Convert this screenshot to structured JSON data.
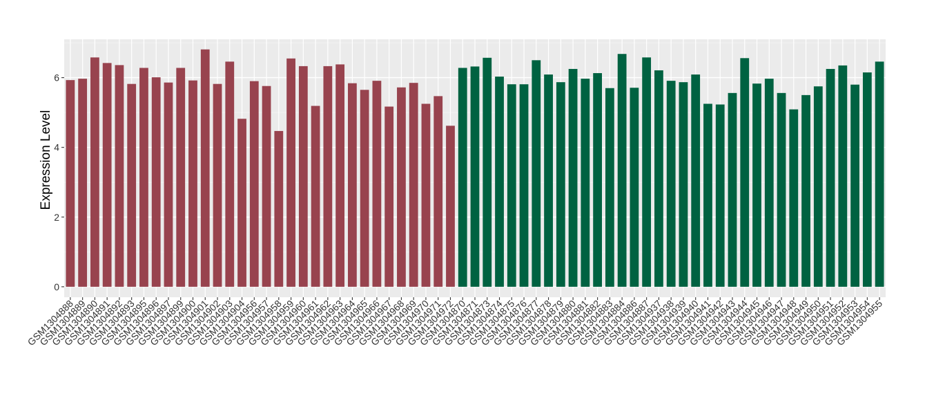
{
  "chart_data": {
    "type": "bar",
    "title": "",
    "xlabel": "",
    "ylabel": "Expression Level",
    "ylim": [
      -0.3,
      7.1
    ],
    "yticks": [
      0,
      2,
      4,
      6
    ],
    "grid": true,
    "categories": [
      "GSM1304888",
      "GSM1304889",
      "GSM1304890",
      "GSM1304891",
      "GSM1304892",
      "GSM1304893",
      "GSM1304895",
      "GSM1304896",
      "GSM1304897",
      "GSM1304899",
      "GSM1304900",
      "GSM1304901",
      "GSM1304902",
      "GSM1304903",
      "GSM1304904",
      "GSM1304956",
      "GSM1304957",
      "GSM1304958",
      "GSM1304959",
      "GSM1304960",
      "GSM1304961",
      "GSM1304962",
      "GSM1304963",
      "GSM1304964",
      "GSM1304965",
      "GSM1304966",
      "GSM1304967",
      "GSM1304968",
      "GSM1304969",
      "GSM1304970",
      "GSM1304971",
      "GSM1304972",
      "GSM1304870",
      "GSM1304871",
      "GSM1304873",
      "GSM1304874",
      "GSM1304875",
      "GSM1304876",
      "GSM1304877",
      "GSM1304878",
      "GSM1304879",
      "GSM1304880",
      "GSM1304881",
      "GSM1304882",
      "GSM1304883",
      "GSM1304884",
      "GSM1304886",
      "GSM1304887",
      "GSM1304937",
      "GSM1304938",
      "GSM1304939",
      "GSM1304940",
      "GSM1304941",
      "GSM1304942",
      "GSM1304943",
      "GSM1304944",
      "GSM1304945",
      "GSM1304946",
      "GSM1304947",
      "GSM1304948",
      "GSM1304949",
      "GSM1304950",
      "GSM1304951",
      "GSM1304952",
      "GSM1304953",
      "GSM1304954",
      "GSM1304955"
    ],
    "values": [
      5.93,
      5.97,
      6.58,
      6.42,
      6.36,
      5.82,
      6.28,
      6.01,
      5.86,
      6.28,
      5.92,
      6.81,
      5.82,
      6.46,
      4.82,
      5.9,
      5.76,
      4.47,
      6.55,
      6.33,
      5.19,
      6.33,
      6.38,
      5.84,
      5.65,
      5.91,
      5.17,
      5.72,
      5.85,
      5.25,
      5.47,
      4.62,
      6.28,
      6.32,
      6.57,
      6.03,
      5.81,
      5.81,
      6.5,
      6.09,
      5.87,
      6.25,
      5.97,
      6.13,
      5.7,
      6.68,
      5.71,
      6.58,
      6.21,
      5.91,
      5.87,
      6.09,
      5.25,
      5.23,
      5.56,
      6.56,
      5.83,
      5.97,
      5.56,
      5.09,
      5.5,
      5.75,
      6.25,
      6.35,
      5.8,
      6.15,
      6.46
    ],
    "groups": [
      {
        "start": 0,
        "end": 31,
        "color": "#98434e"
      },
      {
        "start": 32,
        "end": 66,
        "color": "#006241"
      }
    ]
  }
}
